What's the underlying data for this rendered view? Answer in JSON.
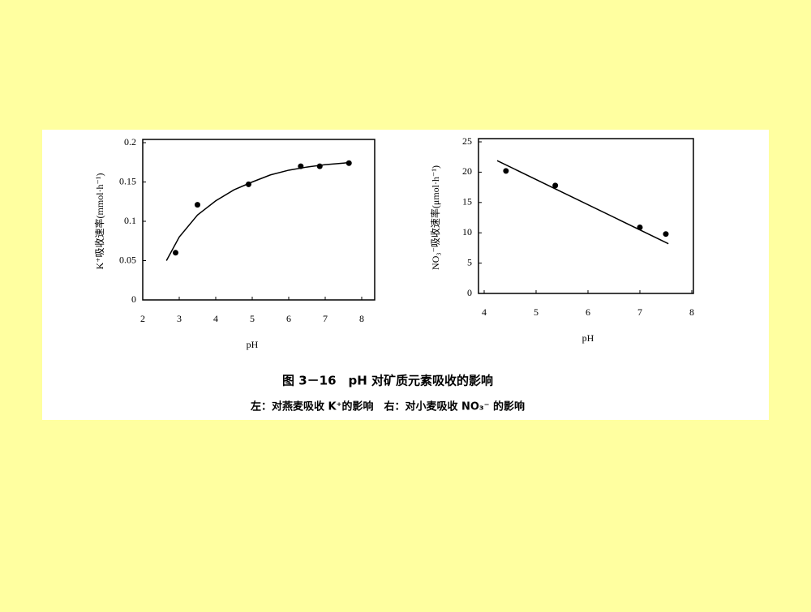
{
  "chart_data": [
    {
      "type": "scatter",
      "x_label": "pH",
      "y_label": "K⁺吸收速率(mmol·h⁻¹)",
      "x": [
        2.9,
        3.5,
        4.9,
        6.33,
        6.85,
        7.65
      ],
      "values": [
        0.06,
        0.121,
        0.147,
        0.17,
        0.17,
        0.174
      ],
      "color": "#000000",
      "fit": {
        "x": [
          2.65,
          3.0,
          3.5,
          4.0,
          4.5,
          5.0,
          5.5,
          6.0,
          6.5,
          7.0,
          7.5,
          7.7
        ],
        "values": [
          0.05,
          0.08,
          0.108,
          0.126,
          0.14,
          0.15,
          0.159,
          0.165,
          0.169,
          0.172,
          0.174,
          0.175
        ]
      },
      "xlim": [
        2,
        8
      ],
      "ylim": [
        0,
        0.2
      ],
      "xticks": [
        2,
        3,
        4,
        5,
        6,
        7,
        8
      ],
      "yticks": [
        0,
        0.05,
        0.1,
        0.15,
        0.2
      ]
    },
    {
      "type": "scatter",
      "x_label": "pH",
      "y_label": "NO₃⁻吸收速率(μmol·h⁻¹)",
      "x": [
        4.42,
        5.37,
        7.0,
        7.5
      ],
      "values": [
        20.2,
        17.8,
        10.9,
        9.8
      ],
      "color": "#000000",
      "fit": {
        "x": [
          4.25,
          7.55
        ],
        "values": [
          21.9,
          8.2
        ]
      },
      "xlim": [
        4,
        8
      ],
      "ylim": [
        0,
        25
      ],
      "xticks": [
        4,
        5,
        6,
        7,
        8
      ],
      "yticks": [
        0,
        5,
        10,
        15,
        20,
        25
      ]
    }
  ],
  "figure": {
    "caption": "图 3－16　pH 对矿质元素吸收的影响",
    "subcaption": "左：对燕麦吸收 K⁺的影响　右：对小麦吸收 NO₃⁻ 的影响"
  }
}
